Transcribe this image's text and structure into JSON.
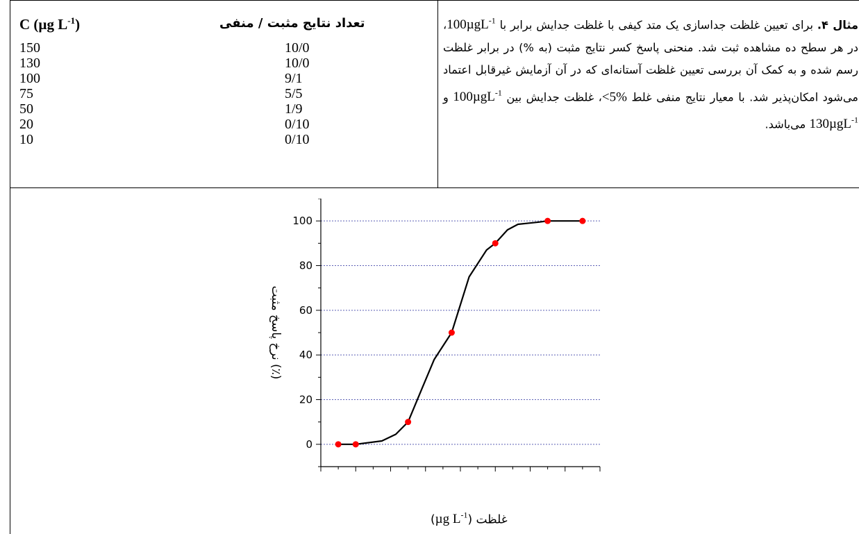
{
  "table": {
    "header_concentration": "C (µg L",
    "header_concentration_sup": "-1",
    "header_concentration_close": ")",
    "header_results": "تعداد نتایج مثبت / منفی",
    "rows": [
      {
        "c": "150",
        "result": "10/0"
      },
      {
        "c": "130",
        "result": "10/0"
      },
      {
        "c": "100",
        "result": "9/1"
      },
      {
        "c": "75",
        "result": "5/5"
      },
      {
        "c": "50",
        "result": "1/9"
      },
      {
        "c": "20",
        "result": "0/10"
      },
      {
        "c": "10",
        "result": "0/10"
      }
    ]
  },
  "paragraph": {
    "label": "مثال ۴.",
    "t1": " برای تعیین غلظت جداسازی یک متد کیفی با غلظت جدایش برابر با ",
    "v1": "100µgL",
    "s1": "-1",
    "t2": "، در هر سطح ده مشاهده ثبت شد. منحنی پاسخ کسر نتایج مثبت (به %) در برابر غلظت رسم شده و به کمک آن بررسی تعیین غلظت آستانه‌ای که در آن آزمایش غیرقابل اعتماد می‌شود امکان‌پذیر شد. با معیار نتایج منفی غلط ",
    "v2": "<5%",
    "t3": "، غلظت جدایش بین ",
    "v3": "100µgL",
    "s3": "-1",
    "t4": " و ",
    "v4": "130µgL",
    "s4": "-1",
    "t5": " می‌باشد."
  },
  "chart_data": {
    "type": "scatter",
    "ylabel": "نرخ پاسخ مثبت (٪)",
    "xlabel_text": "غلظت (",
    "xlabel_unit": "µg L",
    "xlabel_sup": "-1",
    "xlabel_close": ")",
    "xlim": [
      0,
      160
    ],
    "ylim": [
      -10,
      110
    ],
    "x_ticks": [
      0,
      20,
      40,
      60,
      80,
      100,
      120,
      140,
      160
    ],
    "y_ticks": [
      0,
      20,
      40,
      60,
      80,
      100
    ],
    "gridlines_y": [
      0,
      20,
      40,
      60,
      80,
      100
    ],
    "points": [
      {
        "x": 10,
        "y": 0
      },
      {
        "x": 20,
        "y": 0
      },
      {
        "x": 50,
        "y": 10
      },
      {
        "x": 75,
        "y": 50
      },
      {
        "x": 100,
        "y": 90
      },
      {
        "x": 130,
        "y": 100
      },
      {
        "x": 150,
        "y": 100
      }
    ],
    "curve": [
      [
        10,
        0
      ],
      [
        20,
        0
      ],
      [
        35,
        1.5
      ],
      [
        43,
        4.5
      ],
      [
        50,
        10
      ],
      [
        58,
        25
      ],
      [
        65,
        38
      ],
      [
        75,
        50
      ],
      [
        85,
        75
      ],
      [
        95,
        87
      ],
      [
        100,
        90
      ],
      [
        107,
        96
      ],
      [
        113,
        98.5
      ],
      [
        125,
        99.5
      ],
      [
        130,
        100
      ],
      [
        150,
        100
      ]
    ],
    "marker_color": "#ff0000",
    "line_color": "#000000",
    "grid_color": "#5b5fb5"
  }
}
